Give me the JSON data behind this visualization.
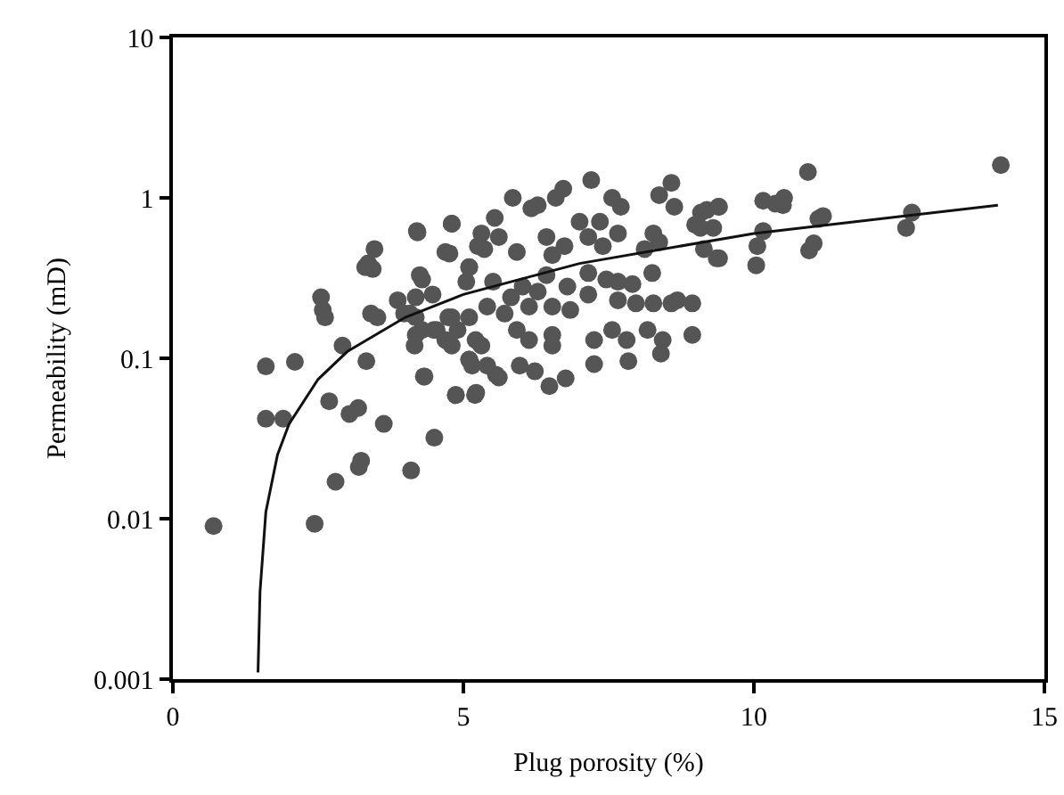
{
  "chart_data": {
    "type": "scatter",
    "xlabel": "Plug porosity (%)",
    "ylabel": "Permeability (mD)",
    "xlim": [
      0,
      15
    ],
    "xticks": [
      0,
      5,
      10,
      15
    ],
    "ylim": [
      0.001,
      10
    ],
    "yticks": [
      0.001,
      0.01,
      0.1,
      1,
      10
    ],
    "log": "y",
    "grid": false,
    "marker": "circle",
    "series": [
      {
        "type": "scatter",
        "color": "#555555",
        "x": [
          0.7,
          1.6,
          2.1,
          1.6,
          1.9,
          2.44,
          2.8,
          3.24,
          3.2,
          4.1,
          4.5,
          2.69,
          3.04,
          3.19,
          3.63,
          3.33,
          2.92,
          4.32,
          2.55,
          2.58,
          2.62,
          3.36,
          3.47,
          3.31,
          3.44,
          4.21,
          4.8,
          4.76,
          4.25,
          3.41,
          3.52,
          3.87,
          4.18,
          4.47,
          3.98,
          4.18,
          4.29,
          4.16,
          4.54,
          4.74,
          4.9,
          4.8,
          4.87,
          5.1,
          5.15,
          5.2,
          5.1,
          5.25,
          7.2,
          6.72,
          6.59,
          5.85,
          6.17,
          6.28,
          7.56,
          7.71,
          8.37,
          8.58,
          8.63,
          9.19,
          9.39,
          9.08,
          9.36,
          4.8,
          5.54,
          4.2,
          5.31,
          5.61,
          5.92,
          5.36,
          6.43,
          6.74,
          6.53,
          7.0,
          7.15,
          7.35,
          7.4,
          7.66,
          8.12,
          8.27,
          8.37,
          8.25,
          4.69,
          4.29,
          5.1,
          5.05,
          5.51,
          5.82,
          6.02,
          6.28,
          6.43,
          6.79,
          7.15,
          7.46,
          7.66,
          7.91,
          4.08,
          4.49,
          4.8,
          5.1,
          5.41,
          5.71,
          6.13,
          6.53,
          6.84,
          7.15,
          7.66,
          7.97,
          8.27,
          8.58,
          8.94,
          4.18,
          4.69,
          5.21,
          5.92,
          6.13,
          6.53,
          7.25,
          7.56,
          7.81,
          8.17,
          8.43,
          8.94,
          5.1,
          5.31,
          5.41,
          5.61,
          5.97,
          6.23,
          6.53,
          6.48,
          4.33,
          4.87,
          5.22,
          5.56,
          6.76,
          7.25,
          7.84,
          8.4,
          14.25,
          10.93,
          10.16,
          10.37,
          10.52,
          10.5,
          11.19,
          11.11,
          12.72,
          12.62,
          11.03,
          10.95,
          10.16,
          10.06,
          10.04,
          9.09,
          9.4,
          8.99,
          9.3,
          9.14,
          9.4,
          8.68
        ],
        "values": [
          0.009,
          0.089,
          0.095,
          0.042,
          0.042,
          0.0093,
          0.017,
          0.023,
          0.021,
          0.02,
          0.032,
          0.054,
          0.045,
          0.049,
          0.039,
          0.096,
          0.12,
          0.077,
          0.24,
          0.2,
          0.18,
          0.39,
          0.48,
          0.37,
          0.36,
          0.61,
          0.69,
          0.45,
          0.33,
          0.19,
          0.18,
          0.23,
          0.24,
          0.25,
          0.19,
          0.18,
          0.15,
          0.12,
          0.15,
          0.18,
          0.15,
          0.12,
          0.059,
          0.098,
          0.09,
          0.059,
          0.37,
          0.5,
          1.29,
          1.14,
          1.0,
          1.0,
          0.86,
          0.9,
          1.0,
          0.88,
          1.04,
          1.24,
          0.88,
          0.84,
          0.88,
          0.65,
          0.42,
          0.69,
          0.75,
          0.62,
          0.6,
          0.57,
          0.46,
          0.48,
          0.57,
          0.5,
          0.44,
          0.71,
          0.57,
          0.71,
          0.5,
          0.6,
          0.48,
          0.6,
          0.53,
          0.34,
          0.46,
          0.31,
          0.37,
          0.3,
          0.3,
          0.24,
          0.28,
          0.26,
          0.33,
          0.28,
          0.34,
          0.31,
          0.3,
          0.29,
          0.19,
          0.15,
          0.18,
          0.18,
          0.21,
          0.19,
          0.21,
          0.21,
          0.2,
          0.25,
          0.23,
          0.22,
          0.22,
          0.22,
          0.22,
          0.14,
          0.13,
          0.13,
          0.15,
          0.13,
          0.14,
          0.13,
          0.15,
          0.13,
          0.15,
          0.13,
          0.14,
          0.098,
          0.12,
          0.09,
          0.076,
          0.09,
          0.083,
          0.12,
          0.067,
          0.077,
          0.059,
          0.061,
          0.079,
          0.075,
          0.092,
          0.096,
          0.107,
          1.6,
          1.45,
          0.96,
          0.92,
          1.0,
          0.9,
          0.77,
          0.74,
          0.81,
          0.65,
          0.52,
          0.47,
          0.62,
          0.5,
          0.38,
          0.81,
          0.88,
          0.68,
          0.65,
          0.48,
          0.42,
          0.23
        ]
      },
      {
        "type": "line",
        "color": "#111111",
        "marker": "none",
        "line_style": "solid",
        "x": [
          1.465,
          1.5,
          1.6,
          1.8,
          2,
          2.5,
          3,
          4,
          5,
          7,
          10,
          14.2
        ],
        "values": [
          0.0011,
          0.0035,
          0.011,
          0.025,
          0.039,
          0.074,
          0.11,
          0.18,
          0.25,
          0.39,
          0.6,
          0.9
        ]
      }
    ]
  }
}
